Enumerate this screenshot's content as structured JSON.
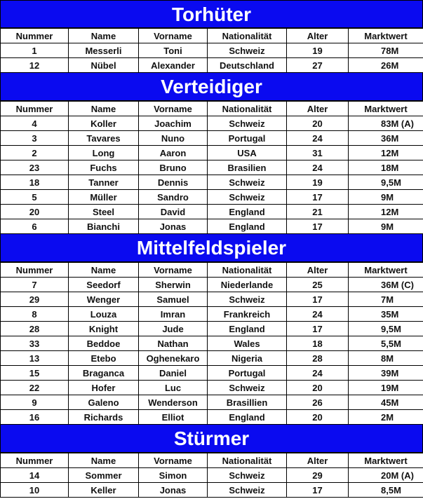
{
  "headers": [
    "Nummer",
    "Name",
    "Vorname",
    "Nationalität",
    "Alter",
    "Marktwert"
  ],
  "sections": [
    {
      "title": "Torhüter",
      "rows": [
        [
          "1",
          "Messerli",
          "Toni",
          "Schweiz",
          "19",
          "78M"
        ],
        [
          "12",
          "Nübel",
          "Alexander",
          "Deutschland",
          "27",
          "26M"
        ]
      ]
    },
    {
      "title": "Verteidiger",
      "rows": [
        [
          "4",
          "Koller",
          "Joachim",
          "Schweiz",
          "20",
          "83M (A)"
        ],
        [
          "3",
          "Tavares",
          "Nuno",
          "Portugal",
          "24",
          "36M"
        ],
        [
          "2",
          "Long",
          "Aaron",
          "USA",
          "31",
          "12M"
        ],
        [
          "23",
          "Fuchs",
          "Bruno",
          "Brasilien",
          "24",
          "18M"
        ],
        [
          "18",
          "Tanner",
          "Dennis",
          "Schweiz",
          "19",
          "9,5M"
        ],
        [
          "5",
          "Müller",
          "Sandro",
          "Schweiz",
          "17",
          "9M"
        ],
        [
          "20",
          "Steel",
          "David",
          "England",
          "21",
          "12M"
        ],
        [
          "6",
          "Bianchi",
          "Jonas",
          "England",
          "17",
          "9M"
        ]
      ]
    },
    {
      "title": "Mittelfeldspieler",
      "rows": [
        [
          "7",
          "Seedorf",
          "Sherwin",
          "Niederlande",
          "25",
          "36M (C)"
        ],
        [
          "29",
          "Wenger",
          "Samuel",
          "Schweiz",
          "17",
          "7M"
        ],
        [
          "8",
          "Louza",
          "Imran",
          "Frankreich",
          "24",
          "35M"
        ],
        [
          "28",
          "Knight",
          "Jude",
          "England",
          "17",
          "9,5M"
        ],
        [
          "33",
          "Beddoe",
          "Nathan",
          "Wales",
          "18",
          "5,5M"
        ],
        [
          "13",
          "Etebo",
          "Oghenekaro",
          "Nigeria",
          "28",
          "8M"
        ],
        [
          "15",
          "Braganca",
          "Daniel",
          "Portugal",
          "24",
          "39M"
        ],
        [
          "22",
          "Hofer",
          "Luc",
          "Schweiz",
          "20",
          "19M"
        ],
        [
          "9",
          "Galeno",
          "Wenderson",
          "Brasillien",
          "26",
          "45M"
        ],
        [
          "16",
          "Richards",
          "Elliot",
          "England",
          "20",
          "2M"
        ]
      ]
    },
    {
      "title": "Stürmer",
      "rows": [
        [
          "14",
          "Sommer",
          "Simon",
          "Schweiz",
          "29",
          "20M (A)"
        ],
        [
          "10",
          "Keller",
          "Jonas",
          "Schweiz",
          "17",
          "8,5M"
        ]
      ]
    }
  ]
}
